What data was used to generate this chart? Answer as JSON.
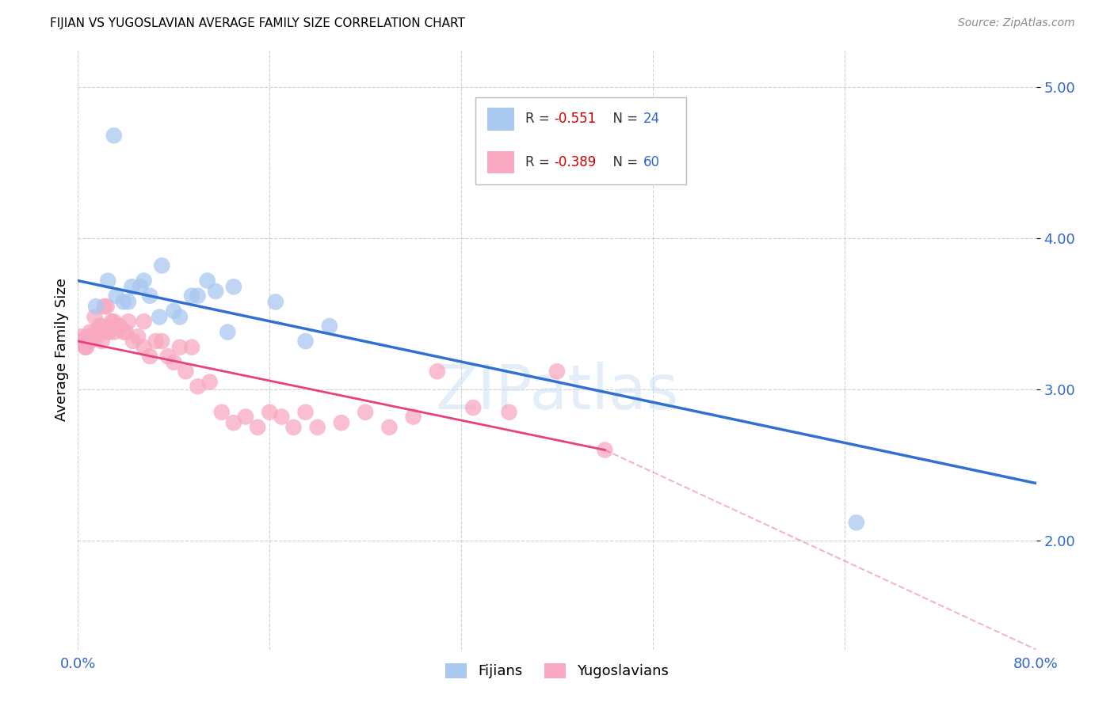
{
  "title": "FIJIAN VS YUGOSLAVIAN AVERAGE FAMILY SIZE CORRELATION CHART",
  "source": "Source: ZipAtlas.com",
  "ylabel": "Average Family Size",
  "watermark": "ZIPatlas",
  "fijian_color": "#a8c8f0",
  "fijian_line_color": "#3070d0",
  "yugoslav_color": "#f8a8c0",
  "yugoslav_line_color": "#e84080",
  "yugoslav_dash_color": "#e8a0b8",
  "blue_line_x0": 0,
  "blue_line_y0": 3.72,
  "blue_line_x1": 80,
  "blue_line_y1": 2.38,
  "pink_line_x0": 0,
  "pink_line_y0": 3.32,
  "pink_line_x1": 44,
  "pink_line_y1": 2.6,
  "pink_dash_x0": 44,
  "pink_dash_y0": 2.6,
  "pink_dash_x1": 80,
  "pink_dash_y1": 1.28,
  "xlim": [
    0,
    80
  ],
  "ylim": [
    1.28,
    5.25
  ],
  "yticks": [
    2.0,
    3.0,
    4.0,
    5.0
  ],
  "ytick_labels": [
    "2.00",
    "3.00",
    "4.00",
    "5.00"
  ],
  "fijian_x": [
    1.5,
    2.5,
    3.2,
    3.8,
    4.5,
    5.2,
    6.0,
    7.0,
    8.5,
    10.0,
    11.5,
    13.0,
    3.0,
    4.2,
    5.5,
    6.8,
    8.0,
    9.5,
    10.8,
    12.5,
    16.5,
    19.0,
    21.0,
    65.0
  ],
  "fijian_y": [
    3.55,
    3.72,
    3.62,
    3.58,
    3.68,
    3.68,
    3.62,
    3.82,
    3.48,
    3.62,
    3.65,
    3.68,
    4.68,
    3.58,
    3.72,
    3.48,
    3.52,
    3.62,
    3.72,
    3.38,
    3.58,
    3.32,
    3.42,
    2.12
  ],
  "yugoslav_x": [
    0.2,
    0.4,
    0.6,
    0.8,
    1.0,
    1.2,
    1.4,
    1.6,
    1.8,
    2.0,
    2.2,
    2.4,
    2.6,
    2.8,
    3.0,
    3.2,
    3.5,
    3.8,
    4.2,
    4.6,
    5.0,
    5.5,
    6.0,
    6.5,
    7.0,
    7.5,
    8.0,
    8.5,
    9.0,
    9.5,
    10.0,
    11.0,
    12.0,
    13.0,
    14.0,
    15.0,
    16.0,
    17.0,
    18.0,
    19.0,
    20.0,
    22.0,
    24.0,
    26.0,
    28.0,
    30.0,
    33.0,
    36.0,
    40.0,
    44.0,
    0.3,
    0.5,
    0.7,
    1.0,
    1.5,
    2.0,
    2.5,
    3.0,
    4.0,
    5.5
  ],
  "yugoslav_y": [
    3.35,
    3.32,
    3.28,
    3.35,
    3.38,
    3.35,
    3.48,
    3.35,
    3.42,
    3.42,
    3.55,
    3.55,
    3.38,
    3.45,
    3.45,
    3.42,
    3.42,
    3.38,
    3.45,
    3.32,
    3.35,
    3.45,
    3.22,
    3.32,
    3.32,
    3.22,
    3.18,
    3.28,
    3.12,
    3.28,
    3.02,
    3.05,
    2.85,
    2.78,
    2.82,
    2.75,
    2.85,
    2.82,
    2.75,
    2.85,
    2.75,
    2.78,
    2.85,
    2.75,
    2.82,
    3.12,
    2.88,
    2.85,
    3.12,
    2.6,
    3.32,
    3.32,
    3.28,
    3.32,
    3.38,
    3.32,
    3.38,
    3.38,
    3.38,
    3.28
  ]
}
